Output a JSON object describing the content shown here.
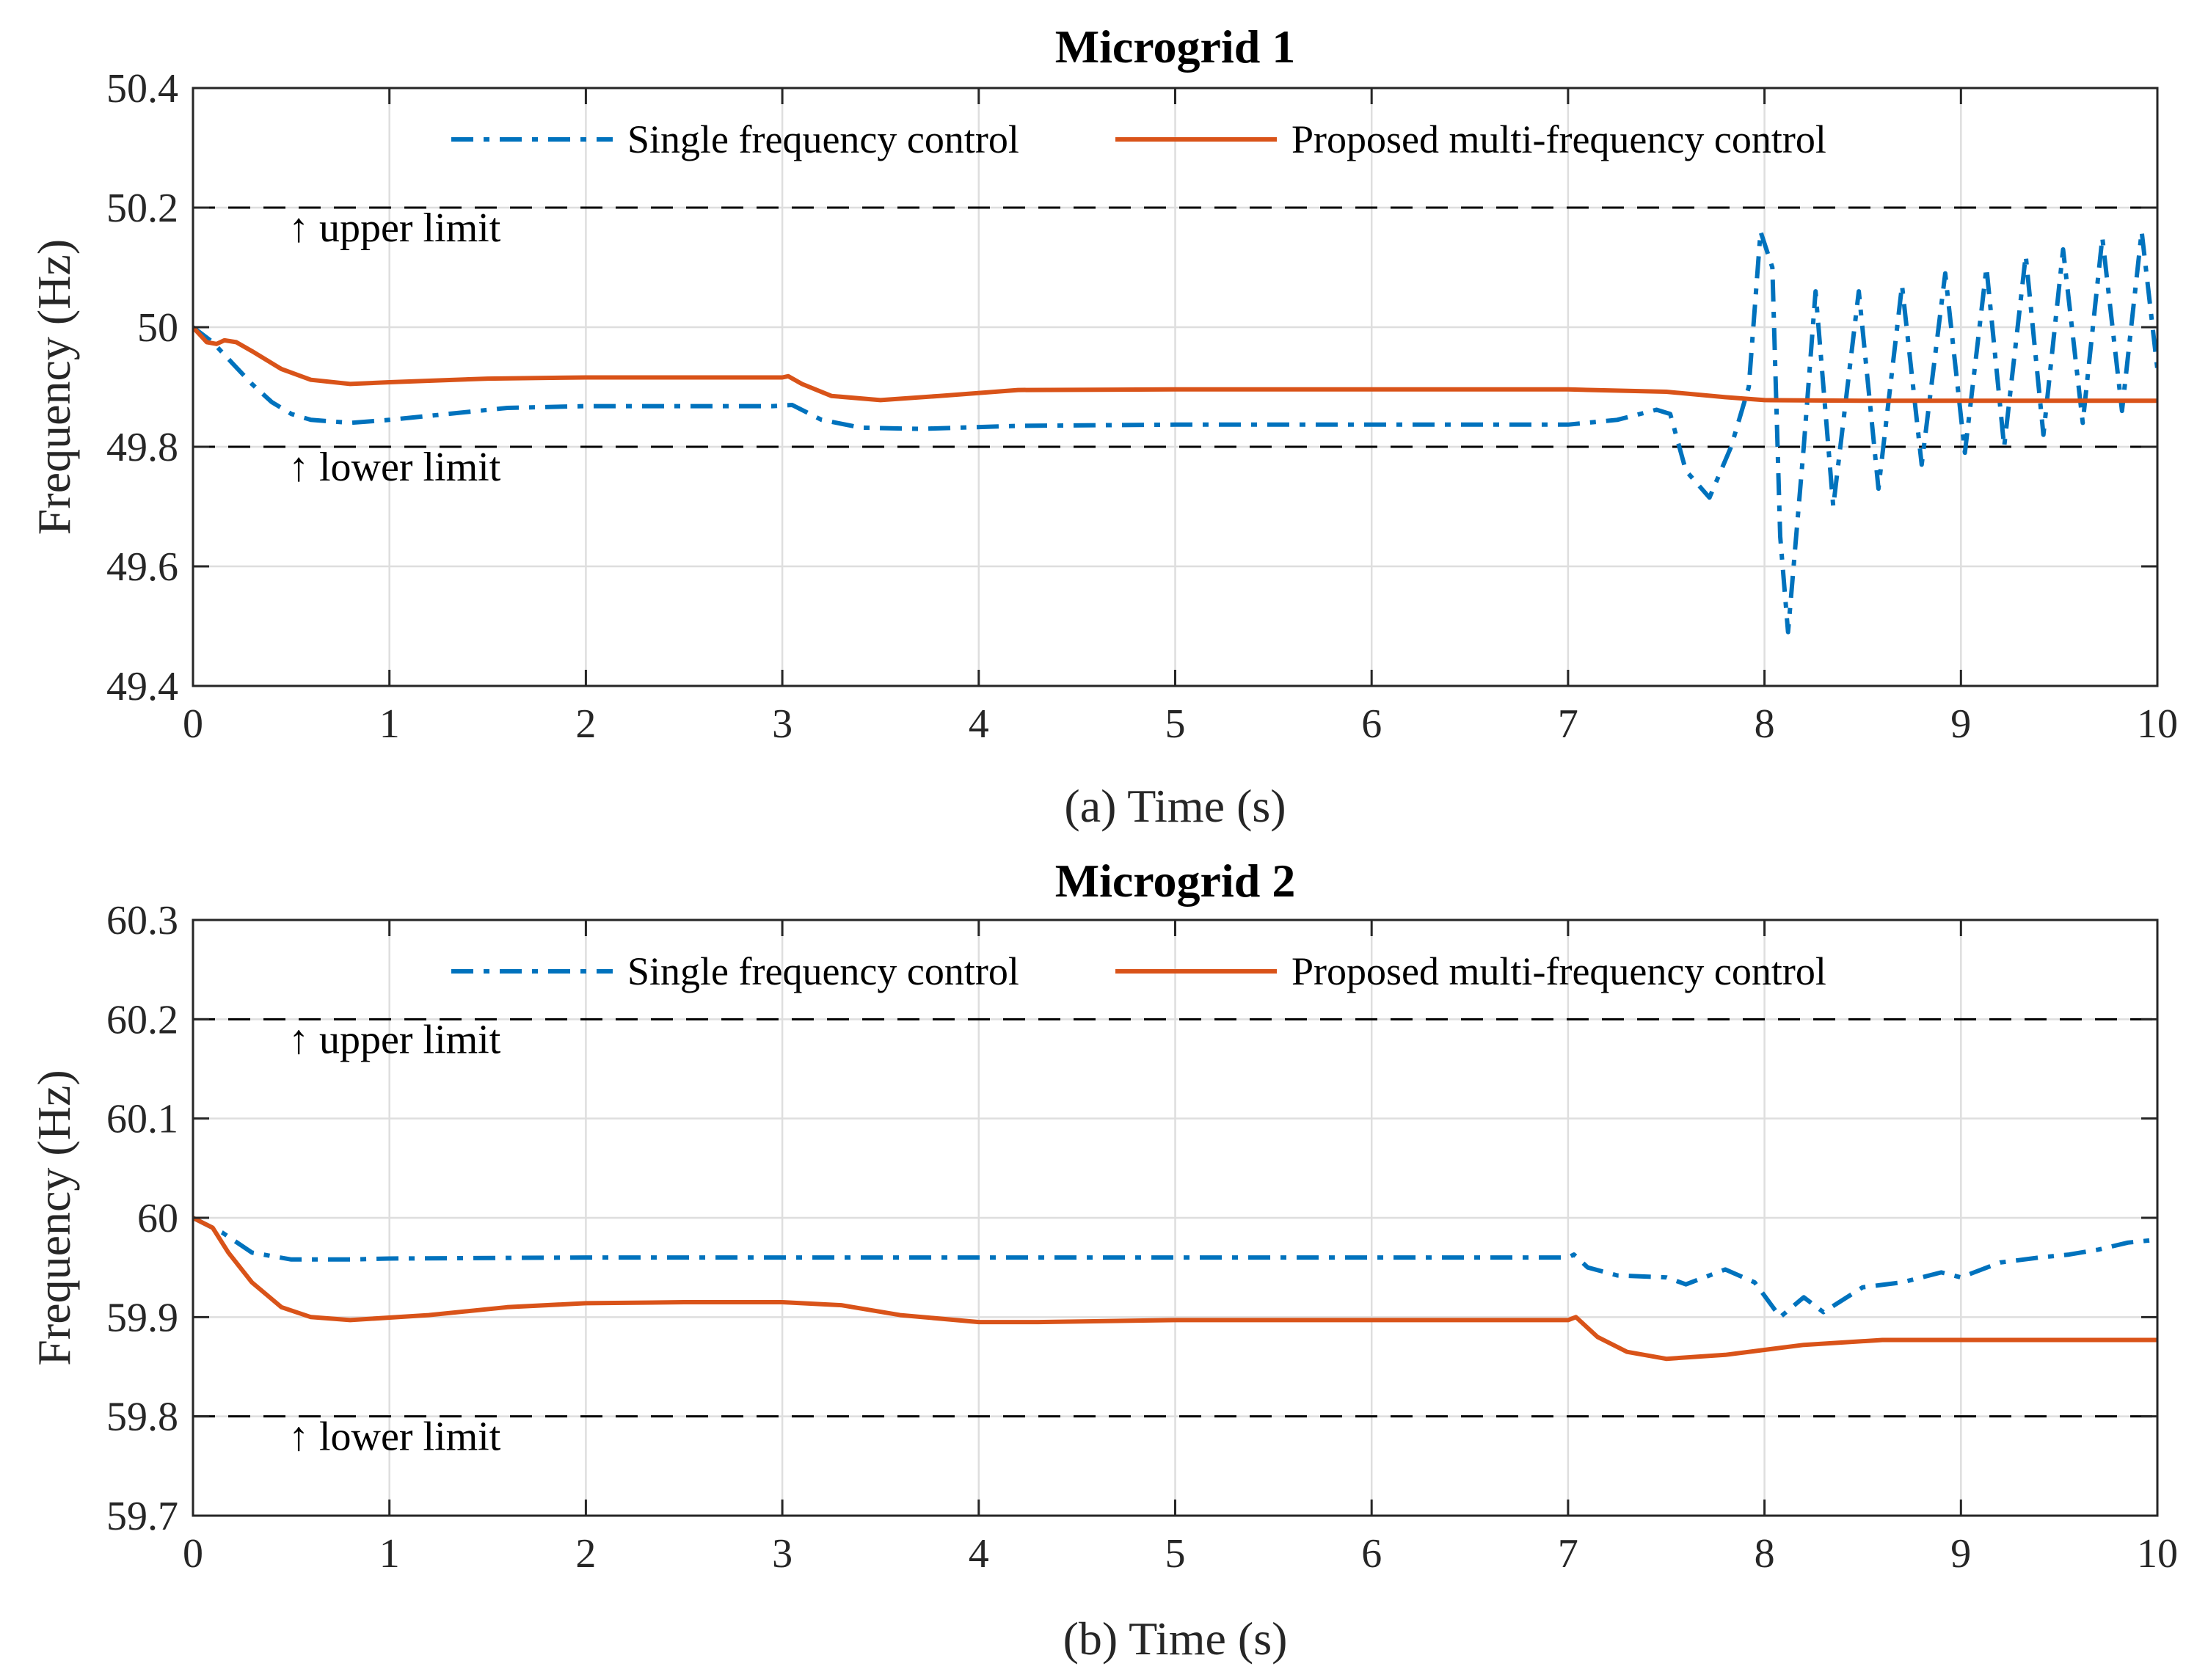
{
  "chart_data": [
    {
      "type": "line",
      "title": "Microgrid 1",
      "xlabel": "(a) Time (s)",
      "ylabel": "Frequency (Hz)",
      "xlim": [
        0,
        10
      ],
      "ylim": [
        49.4,
        50.4
      ],
      "xticks": [
        0,
        1,
        2,
        3,
        4,
        5,
        6,
        7,
        8,
        9,
        10
      ],
      "yticks": [
        49.4,
        49.6,
        49.8,
        50,
        50.2,
        50.4
      ],
      "xtick_labels": [
        "0",
        "1",
        "2",
        "3",
        "4",
        "5",
        "6",
        "7",
        "8",
        "9",
        "10"
      ],
      "ytick_labels": [
        "49.4",
        "49.6",
        "49.8",
        "50",
        "50.2",
        "50.4"
      ],
      "grid": true,
      "legend_position": "top",
      "limits": [
        {
          "label": "↑ upper limit",
          "y": 50.2
        },
        {
          "label": "↑ lower limit",
          "y": 49.8
        }
      ],
      "series": [
        {
          "name": "Single frequency control",
          "style": "dashdot",
          "color": "#0072BD",
          "points": [
            [
              0,
              50.0
            ],
            [
              0.1,
              49.975
            ],
            [
              0.2,
              49.94
            ],
            [
              0.3,
              49.905
            ],
            [
              0.4,
              49.875
            ],
            [
              0.5,
              49.855
            ],
            [
              0.6,
              49.845
            ],
            [
              0.8,
              49.84
            ],
            [
              1.0,
              49.845
            ],
            [
              1.3,
              49.855
            ],
            [
              1.6,
              49.865
            ],
            [
              2.0,
              49.868
            ],
            [
              2.5,
              49.868
            ],
            [
              2.95,
              49.868
            ],
            [
              3.05,
              49.87
            ],
            [
              3.2,
              49.845
            ],
            [
              3.4,
              49.832
            ],
            [
              3.7,
              49.83
            ],
            [
              4.2,
              49.835
            ],
            [
              5.0,
              49.837
            ],
            [
              6.0,
              49.837
            ],
            [
              7.0,
              49.837
            ],
            [
              7.25,
              49.845
            ],
            [
              7.45,
              49.862
            ],
            [
              7.52,
              49.855
            ],
            [
              7.6,
              49.76
            ],
            [
              7.72,
              49.715
            ],
            [
              7.83,
              49.8
            ],
            [
              7.92,
              49.9
            ],
            [
              7.98,
              50.16
            ],
            [
              8.04,
              50.1
            ],
            [
              8.08,
              49.65
            ],
            [
              8.12,
              49.49
            ],
            [
              8.2,
              49.8
            ],
            [
              8.26,
              50.06
            ],
            [
              8.35,
              49.7
            ],
            [
              8.48,
              50.06
            ],
            [
              8.58,
              49.73
            ],
            [
              8.7,
              50.07
            ],
            [
              8.8,
              49.77
            ],
            [
              8.92,
              50.09
            ],
            [
              9.02,
              49.79
            ],
            [
              9.13,
              50.1
            ],
            [
              9.22,
              49.8
            ],
            [
              9.33,
              50.12
            ],
            [
              9.42,
              49.82
            ],
            [
              9.52,
              50.13
            ],
            [
              9.62,
              49.84
            ],
            [
              9.72,
              50.15
            ],
            [
              9.82,
              49.86
            ],
            [
              9.92,
              50.16
            ],
            [
              10.0,
              49.93
            ]
          ]
        },
        {
          "name": "Proposed multi-frequency control",
          "style": "solid",
          "color": "#D95319",
          "points": [
            [
              0,
              50.0
            ],
            [
              0.07,
              49.975
            ],
            [
              0.12,
              49.972
            ],
            [
              0.16,
              49.978
            ],
            [
              0.22,
              49.975
            ],
            [
              0.3,
              49.96
            ],
            [
              0.45,
              49.93
            ],
            [
              0.6,
              49.912
            ],
            [
              0.8,
              49.905
            ],
            [
              1.0,
              49.908
            ],
            [
              1.5,
              49.914
            ],
            [
              2.0,
              49.916
            ],
            [
              2.5,
              49.916
            ],
            [
              3.0,
              49.916
            ],
            [
              3.03,
              49.918
            ],
            [
              3.1,
              49.905
            ],
            [
              3.25,
              49.885
            ],
            [
              3.5,
              49.878
            ],
            [
              3.8,
              49.885
            ],
            [
              4.2,
              49.895
            ],
            [
              5.0,
              49.896
            ],
            [
              6.0,
              49.896
            ],
            [
              7.0,
              49.896
            ],
            [
              7.5,
              49.892
            ],
            [
              7.8,
              49.883
            ],
            [
              8.0,
              49.878
            ],
            [
              8.5,
              49.877
            ],
            [
              9.0,
              49.877
            ],
            [
              10.0,
              49.877
            ]
          ]
        }
      ]
    },
    {
      "type": "line",
      "title": "Microgrid 2",
      "xlabel": "(b) Time (s)",
      "ylabel": "Frequency (Hz)",
      "xlim": [
        0,
        10
      ],
      "ylim": [
        59.7,
        60.3
      ],
      "xticks": [
        0,
        1,
        2,
        3,
        4,
        5,
        6,
        7,
        8,
        9,
        10
      ],
      "yticks": [
        59.7,
        59.8,
        59.9,
        60,
        60.1,
        60.2,
        60.3
      ],
      "xtick_labels": [
        "0",
        "1",
        "2",
        "3",
        "4",
        "5",
        "6",
        "7",
        "8",
        "9",
        "10"
      ],
      "ytick_labels": [
        "59.7",
        "59.8",
        "59.9",
        "60",
        "60.1",
        "60.2",
        "60.3"
      ],
      "grid": true,
      "legend_position": "top",
      "limits": [
        {
          "label": "↑ upper limit",
          "y": 60.2
        },
        {
          "label": "↑ lower limit",
          "y": 59.8
        }
      ],
      "series": [
        {
          "name": "Single frequency control",
          "style": "dashdot",
          "color": "#0072BD",
          "points": [
            [
              0,
              60.0
            ],
            [
              0.15,
              59.985
            ],
            [
              0.3,
              59.965
            ],
            [
              0.5,
              59.958
            ],
            [
              0.8,
              59.958
            ],
            [
              1.0,
              59.959
            ],
            [
              2.0,
              59.96
            ],
            [
              4.0,
              59.96
            ],
            [
              6.0,
              59.96
            ],
            [
              7.0,
              59.96
            ],
            [
              7.03,
              59.963
            ],
            [
              7.1,
              59.95
            ],
            [
              7.25,
              59.942
            ],
            [
              7.5,
              59.94
            ],
            [
              7.6,
              59.933
            ],
            [
              7.8,
              59.948
            ],
            [
              7.95,
              59.935
            ],
            [
              8.08,
              59.9
            ],
            [
              8.2,
              59.92
            ],
            [
              8.3,
              59.905
            ],
            [
              8.5,
              59.93
            ],
            [
              8.7,
              59.935
            ],
            [
              8.9,
              59.945
            ],
            [
              9.0,
              59.94
            ],
            [
              9.2,
              59.955
            ],
            [
              9.4,
              59.96
            ],
            [
              9.55,
              59.963
            ],
            [
              9.7,
              59.968
            ],
            [
              9.85,
              59.975
            ],
            [
              10.0,
              59.978
            ]
          ]
        },
        {
          "name": "Proposed multi-frequency control",
          "style": "solid",
          "color": "#D95319",
          "points": [
            [
              0,
              60.0
            ],
            [
              0.1,
              59.99
            ],
            [
              0.18,
              59.965
            ],
            [
              0.3,
              59.935
            ],
            [
              0.45,
              59.91
            ],
            [
              0.6,
              59.9
            ],
            [
              0.8,
              59.897
            ],
            [
              1.2,
              59.902
            ],
            [
              1.6,
              59.91
            ],
            [
              2.0,
              59.914
            ],
            [
              2.5,
              59.915
            ],
            [
              3.0,
              59.915
            ],
            [
              3.3,
              59.912
            ],
            [
              3.6,
              59.902
            ],
            [
              4.0,
              59.895
            ],
            [
              4.3,
              59.895
            ],
            [
              5.0,
              59.897
            ],
            [
              6.0,
              59.897
            ],
            [
              7.0,
              59.897
            ],
            [
              7.04,
              59.9
            ],
            [
              7.15,
              59.88
            ],
            [
              7.3,
              59.865
            ],
            [
              7.5,
              59.858
            ],
            [
              7.8,
              59.862
            ],
            [
              8.2,
              59.872
            ],
            [
              8.6,
              59.877
            ],
            [
              9.0,
              59.877
            ],
            [
              10.0,
              59.877
            ]
          ]
        }
      ]
    }
  ]
}
